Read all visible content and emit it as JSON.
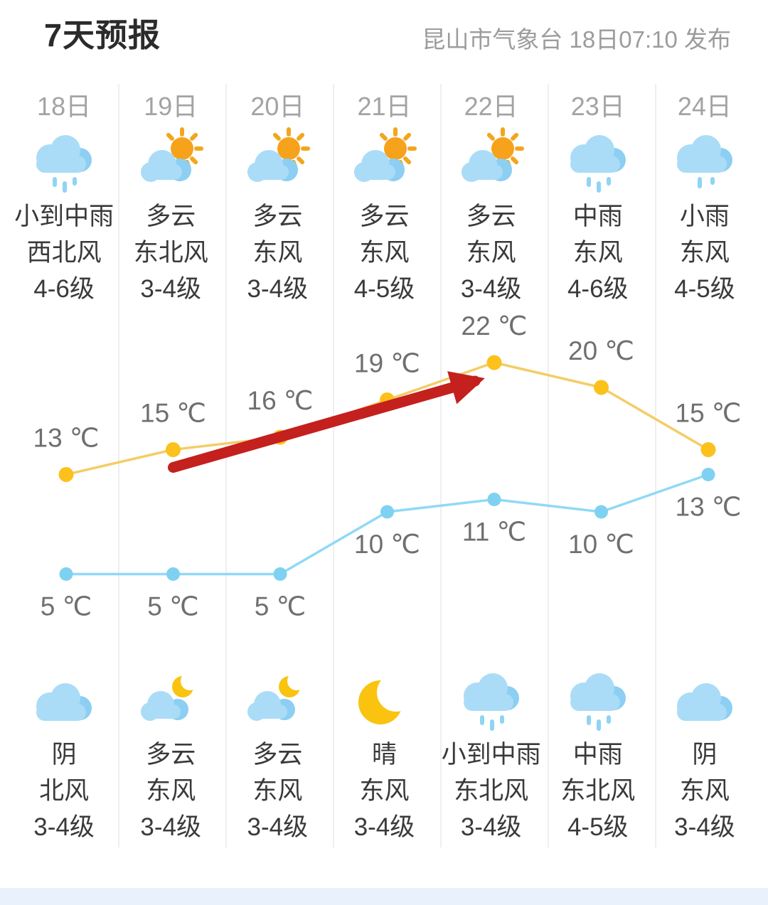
{
  "header": {
    "title": "7天预报",
    "publish_info": "昆山市气象台 18日07:10 发布"
  },
  "days": [
    {
      "date": "18日",
      "day": {
        "icon": "rain-cloud",
        "condition": "小到中雨",
        "wind": "西北风",
        "level": "4-6级"
      },
      "night": {
        "icon": "cloud",
        "condition": "阴",
        "wind": "北风",
        "level": "3-4级"
      }
    },
    {
      "date": "19日",
      "day": {
        "icon": "sun-cloud",
        "condition": "多云",
        "wind": "东北风",
        "level": "3-4级"
      },
      "night": {
        "icon": "moon-cloud",
        "condition": "多云",
        "wind": "东风",
        "level": "3-4级"
      }
    },
    {
      "date": "20日",
      "day": {
        "icon": "sun-cloud",
        "condition": "多云",
        "wind": "东风",
        "level": "3-4级"
      },
      "night": {
        "icon": "moon-cloud",
        "condition": "多云",
        "wind": "东风",
        "level": "3-4级"
      }
    },
    {
      "date": "21日",
      "day": {
        "icon": "sun-cloud",
        "condition": "多云",
        "wind": "东风",
        "level": "4-5级"
      },
      "night": {
        "icon": "moon",
        "condition": "晴",
        "wind": "东风",
        "level": "3-4级"
      }
    },
    {
      "date": "22日",
      "day": {
        "icon": "sun-cloud",
        "condition": "多云",
        "wind": "东风",
        "level": "3-4级"
      },
      "night": {
        "icon": "rain-cloud",
        "condition": "小到中雨",
        "wind": "东北风",
        "level": "3-4级"
      }
    },
    {
      "date": "23日",
      "day": {
        "icon": "rain-cloud",
        "condition": "中雨",
        "wind": "东风",
        "level": "4-6级"
      },
      "night": {
        "icon": "rain-cloud",
        "condition": "中雨",
        "wind": "东北风",
        "level": "4-5级"
      }
    },
    {
      "date": "24日",
      "day": {
        "icon": "light-rain-cloud",
        "condition": "小雨",
        "wind": "东风",
        "level": "4-5级"
      },
      "night": {
        "icon": "cloud",
        "condition": "阴",
        "wind": "东风",
        "level": "3-4级"
      }
    }
  ],
  "chart_data": {
    "type": "line",
    "title": "",
    "categories": [
      "18日",
      "19日",
      "20日",
      "21日",
      "22日",
      "23日",
      "24日"
    ],
    "series": [
      {
        "name": "day-high-temperature",
        "values": [
          13,
          15,
          16,
          19,
          22,
          20,
          15
        ],
        "color": "#fcc11c",
        "line_color": "#f3cd66",
        "label_position": "above"
      },
      {
        "name": "night-low-temperature",
        "values": [
          5,
          5,
          5,
          10,
          11,
          10,
          13
        ],
        "color": "#7fd1f1",
        "line_color": "#90d9f7",
        "label_position": "below"
      }
    ],
    "unit": "℃",
    "ylim": [
      3,
      24
    ],
    "grid": false,
    "legend": "none",
    "annotation": {
      "type": "trend-arrow",
      "color": "#c4201d",
      "from_day": "19日",
      "to_day": "22日"
    }
  },
  "colors": {
    "cloud_light": "#aadcf7",
    "cloud_dark": "#8ccff2",
    "rain_drop": "#8fd4f4",
    "sun": "#f7a21b",
    "ray": "#f2a61e",
    "moon": "#f9c310",
    "footer_bar": "#e9f2fc",
    "divider": "#efefef"
  }
}
